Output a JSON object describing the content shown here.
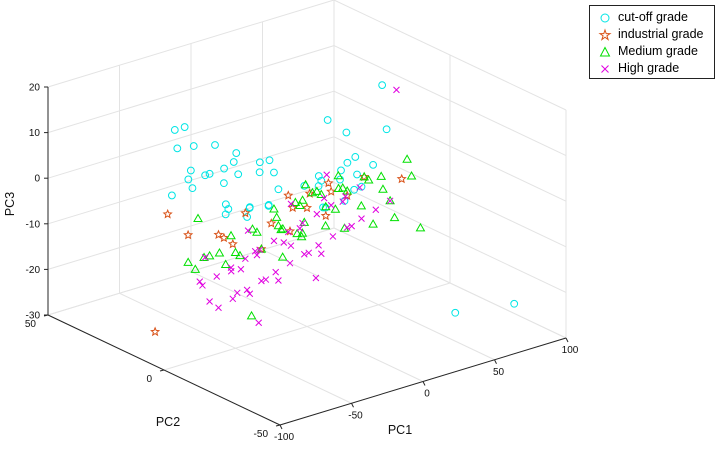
{
  "chart_data": {
    "type": "scatter",
    "projection": "3d",
    "title": "",
    "xlabel": "PC1",
    "ylabel": "PC2",
    "zlabel": "PC3",
    "xlim": [
      -100,
      100
    ],
    "ylim": [
      -50,
      50
    ],
    "zlim": [
      -30,
      20
    ],
    "xticks": [
      "-100",
      "-50",
      "0",
      "50",
      "100"
    ],
    "yticks": [
      "-50",
      "0",
      "50"
    ],
    "zticks": [
      "-30",
      "-20",
      "-10",
      "0",
      "10",
      "20"
    ],
    "grid": true,
    "legend_position": "top-right",
    "series": [
      {
        "name": "cut-off grade",
        "marker": "circle",
        "color": "#00e5e5",
        "points": [
          [
            -60,
            20,
            14
          ],
          [
            -55,
            22,
            9
          ],
          [
            -50,
            18,
            10
          ],
          [
            -45,
            25,
            12
          ],
          [
            -40,
            15,
            10
          ],
          [
            -65,
            10,
            8
          ],
          [
            -60,
            5,
            8
          ],
          [
            -70,
            8,
            7
          ],
          [
            -72,
            5,
            6
          ],
          [
            -55,
            10,
            6
          ],
          [
            -50,
            5,
            5
          ],
          [
            -45,
            8,
            7
          ],
          [
            -40,
            5,
            6
          ],
          [
            -35,
            10,
            7
          ],
          [
            -30,
            12,
            8
          ],
          [
            -25,
            5,
            5
          ],
          [
            -20,
            8,
            6
          ],
          [
            -15,
            5,
            4
          ],
          [
            -10,
            10,
            5
          ],
          [
            -75,
            12,
            3
          ],
          [
            -65,
            -5,
            2
          ],
          [
            -60,
            -2,
            3
          ],
          [
            -55,
            0,
            1
          ],
          [
            -50,
            -5,
            0
          ],
          [
            -45,
            -3,
            1
          ],
          [
            -40,
            0,
            0
          ],
          [
            -35,
            -5,
            1
          ],
          [
            -30,
            -2,
            0
          ],
          [
            -20,
            0,
            2
          ],
          [
            -10,
            -5,
            3
          ],
          [
            0,
            -5,
            2
          ],
          [
            5,
            -2,
            3
          ],
          [
            10,
            0,
            1
          ],
          [
            15,
            -5,
            2
          ],
          [
            25,
            -2,
            4
          ],
          [
            30,
            -10,
            5
          ],
          [
            20,
            -8,
            0
          ],
          [
            10,
            -10,
            -1
          ],
          [
            0,
            -8,
            -2
          ],
          [
            -5,
            -10,
            -1
          ],
          [
            55,
            25,
            4
          ],
          [
            60,
            20,
            2
          ],
          [
            50,
            10,
            0
          ],
          [
            35,
            0,
            0
          ],
          [
            40,
            10,
            -2
          ],
          [
            85,
            20,
            10
          ],
          [
            80,
            15,
            2
          ],
          [
            55,
            -30,
            -25
          ],
          [
            80,
            -40,
            -23
          ],
          [
            30,
            -5,
            -1
          ]
        ]
      },
      {
        "name": "industrial grade",
        "marker": "star",
        "color": "#d95319",
        "points": [
          [
            -90,
            10,
            -25
          ],
          [
            -75,
            5,
            -4
          ],
          [
            -70,
            -5,
            -2
          ],
          [
            -65,
            20,
            -4
          ],
          [
            -60,
            -5,
            -5
          ],
          [
            -50,
            5,
            -7
          ],
          [
            -40,
            -5,
            -8
          ],
          [
            -25,
            0,
            -5
          ],
          [
            -20,
            -5,
            -6
          ],
          [
            -10,
            0,
            -3
          ],
          [
            -5,
            5,
            -2
          ],
          [
            0,
            0,
            -4
          ],
          [
            5,
            -5,
            -5
          ],
          [
            10,
            5,
            -3
          ],
          [
            15,
            0,
            0
          ],
          [
            20,
            -5,
            -2
          ],
          [
            25,
            5,
            -4
          ],
          [
            40,
            0,
            -1
          ],
          [
            50,
            -10,
            0
          ],
          [
            -35,
            5,
            -3
          ]
        ]
      },
      {
        "name": "Medium grade",
        "marker": "triangle",
        "color": "#00e000",
        "points": [
          [
            -75,
            5,
            -10
          ],
          [
            -72,
            0,
            -8
          ],
          [
            -70,
            5,
            -12
          ],
          [
            -65,
            -5,
            -9
          ],
          [
            -60,
            5,
            -10
          ],
          [
            -55,
            -5,
            -8
          ],
          [
            -50,
            0,
            -9
          ],
          [
            -45,
            5,
            -7
          ],
          [
            -40,
            -5,
            -8
          ],
          [
            -35,
            0,
            -6
          ],
          [
            -30,
            5,
            -7
          ],
          [
            -25,
            -5,
            -5
          ],
          [
            -20,
            0,
            -6
          ],
          [
            -15,
            5,
            -4
          ],
          [
            -10,
            -5,
            -5
          ],
          [
            -5,
            0,
            -3
          ],
          [
            0,
            5,
            -4
          ],
          [
            5,
            -5,
            -3
          ],
          [
            10,
            0,
            -2
          ],
          [
            15,
            5,
            -3
          ],
          [
            20,
            -5,
            -1
          ],
          [
            25,
            0,
            -2
          ],
          [
            30,
            5,
            -1
          ],
          [
            35,
            -5,
            0
          ],
          [
            40,
            0,
            -1
          ],
          [
            45,
            -5,
            -3
          ],
          [
            50,
            -5,
            -6
          ],
          [
            60,
            5,
            -4
          ],
          [
            65,
            -5,
            -2
          ],
          [
            70,
            0,
            0
          ],
          [
            -55,
            -10,
            -20
          ],
          [
            -60,
            10,
            -3
          ],
          [
            -20,
            -10,
            -6
          ],
          [
            -5,
            10,
            -8
          ],
          [
            10,
            -10,
            -7
          ],
          [
            20,
            10,
            -5
          ],
          [
            30,
            -10,
            -8
          ],
          [
            0,
            -8,
            -6
          ],
          [
            -30,
            -8,
            -10
          ],
          [
            5,
            5,
            -4
          ],
          [
            -15,
            -5,
            -7
          ],
          [
            15,
            -3,
            -5
          ],
          [
            25,
            -8,
            -4
          ],
          [
            35,
            8,
            -5
          ],
          [
            45,
            -10,
            -8
          ],
          [
            55,
            -15,
            -10
          ],
          [
            -45,
            10,
            -12
          ],
          [
            -10,
            5,
            -9
          ],
          [
            0,
            2,
            -10
          ],
          [
            12,
            8,
            -2
          ]
        ]
      },
      {
        "name": "High grade",
        "marker": "x",
        "color": "#e000e0",
        "points": [
          [
            -70,
            -5,
            -18
          ],
          [
            -65,
            5,
            -16
          ],
          [
            -60,
            -5,
            -17
          ],
          [
            -55,
            5,
            -15
          ],
          [
            -50,
            -5,
            -16
          ],
          [
            -45,
            5,
            -14
          ],
          [
            -40,
            -5,
            -15
          ],
          [
            -35,
            5,
            -13
          ],
          [
            -30,
            -5,
            -14
          ],
          [
            -25,
            5,
            -12
          ],
          [
            -20,
            -5,
            -13
          ],
          [
            -15,
            5,
            -11
          ],
          [
            -10,
            -5,
            -12
          ],
          [
            -5,
            5,
            -10
          ],
          [
            0,
            -5,
            -11
          ],
          [
            5,
            5,
            -9
          ],
          [
            10,
            -5,
            -10
          ],
          [
            15,
            5,
            -8
          ],
          [
            20,
            -5,
            -9
          ],
          [
            25,
            5,
            -7
          ],
          [
            30,
            -5,
            -8
          ],
          [
            35,
            5,
            -6
          ],
          [
            40,
            -5,
            -7
          ],
          [
            45,
            5,
            -5
          ],
          [
            50,
            -5,
            -6
          ],
          [
            -60,
            5,
            -20
          ],
          [
            -50,
            -10,
            -22
          ],
          [
            -40,
            0,
            -19
          ],
          [
            -30,
            10,
            -17
          ],
          [
            -20,
            0,
            -18
          ],
          [
            -10,
            -10,
            -16
          ],
          [
            0,
            10,
            -14
          ],
          [
            10,
            0,
            -15
          ],
          [
            -55,
            10,
            -12
          ],
          [
            -45,
            -10,
            -13
          ],
          [
            -35,
            0,
            -11
          ],
          [
            -25,
            10,
            -9
          ],
          [
            -15,
            -10,
            -10
          ],
          [
            -5,
            0,
            -8
          ],
          [
            5,
            10,
            -6
          ],
          [
            15,
            -10,
            -7
          ],
          [
            25,
            0,
            -5
          ],
          [
            -65,
            -10,
            -14
          ],
          [
            -75,
            0,
            -13
          ],
          [
            -20,
            10,
            -14
          ],
          [
            12,
            0,
            -3
          ],
          [
            30,
            10,
            -2
          ],
          [
            95,
            20,
            8
          ],
          [
            -40,
            8,
            -16
          ],
          [
            -8,
            2,
            -12
          ]
        ]
      }
    ]
  }
}
